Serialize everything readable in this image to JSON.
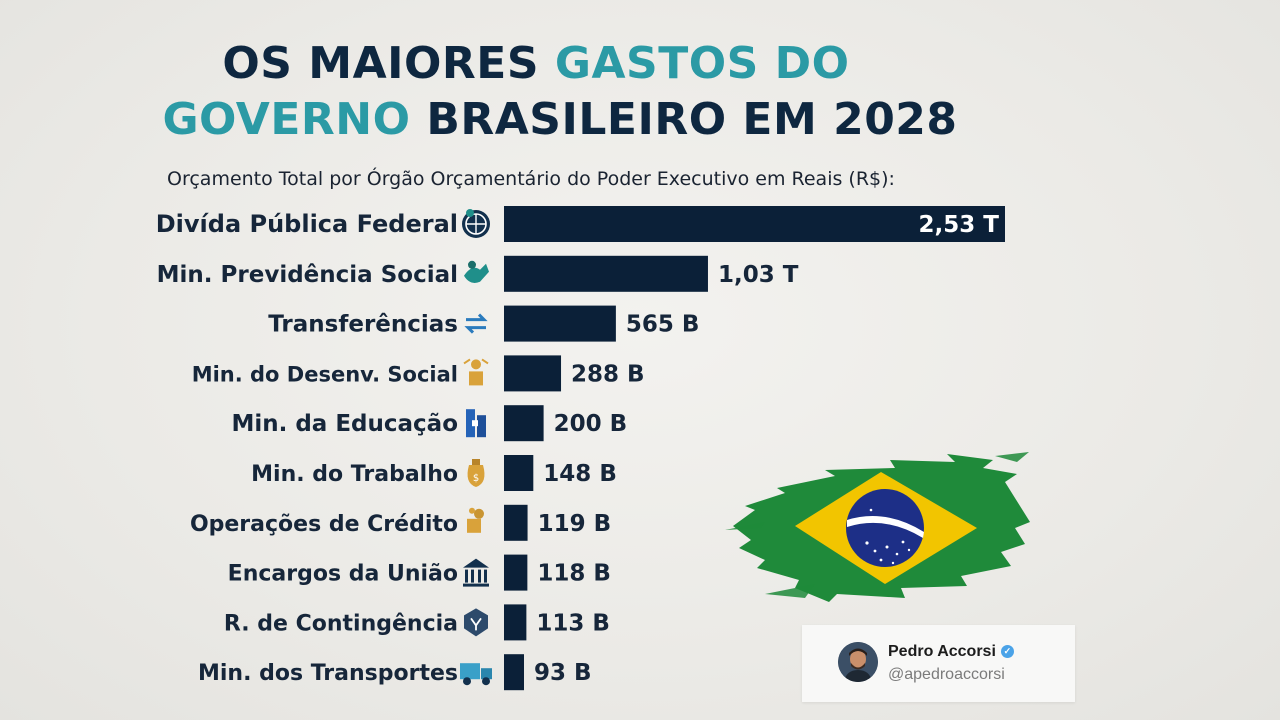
{
  "title": {
    "line1": [
      {
        "text": "OS MAIORES ",
        "style": "dark"
      },
      {
        "text": "GASTOS DO",
        "style": "teal"
      }
    ],
    "line2": [
      {
        "text": "GOVERNO",
        "style": "teal"
      },
      {
        "text": " BRASILEIRO EM  2028",
        "style": "dark"
      }
    ]
  },
  "subtitle": "Orçamento Total por Órgão Orçamentário do Poder Executivo em Reais (R$):",
  "colors": {
    "bar": "#0b2038",
    "title_dark": "#0e2740",
    "title_teal": "#2b9aa5",
    "flag_green": "#1f8a3a",
    "flag_yellow": "#f2c500",
    "flag_blue": "#1d2f87"
  },
  "chart_data": {
    "type": "bar",
    "orientation": "horizontal",
    "title": "OS MAIORES GASTOS DO GOVERNO BRASILEIRO EM 2028",
    "subtitle": "Orçamento Total por Órgão Orçamentário do Poder Executivo em Reais (R$):",
    "categories": [
      "Divída Pública Federal",
      "Min. Previdência Social",
      "Transferências",
      "Min. do Desenv. Social",
      "Min. da Educação",
      "Min. do Trabalho",
      "Operações de Crédito",
      "Encargos da União",
      "R. de Contingência",
      "Min. dos Transportes"
    ],
    "values_billions": [
      2530,
      1030,
      565,
      288,
      200,
      148,
      119,
      118,
      113,
      93
    ],
    "value_labels": [
      "2,53 T",
      "1,03 T",
      "565 B",
      "288 B",
      "200 B",
      "148 B",
      "119 B",
      "118 B",
      "113 B",
      "93 B"
    ],
    "icons": [
      "globe-icon",
      "hands-icon",
      "transfer-arrows-icon",
      "family-icon",
      "books-icon",
      "money-bag-icon",
      "coins-hand-icon",
      "bank-icon",
      "shield-icon",
      "truck-icon"
    ],
    "legend": "none",
    "grid": false
  },
  "author": {
    "name": "Pedro Accorsi",
    "handle": "@apedroaccorsi",
    "verified": true
  }
}
